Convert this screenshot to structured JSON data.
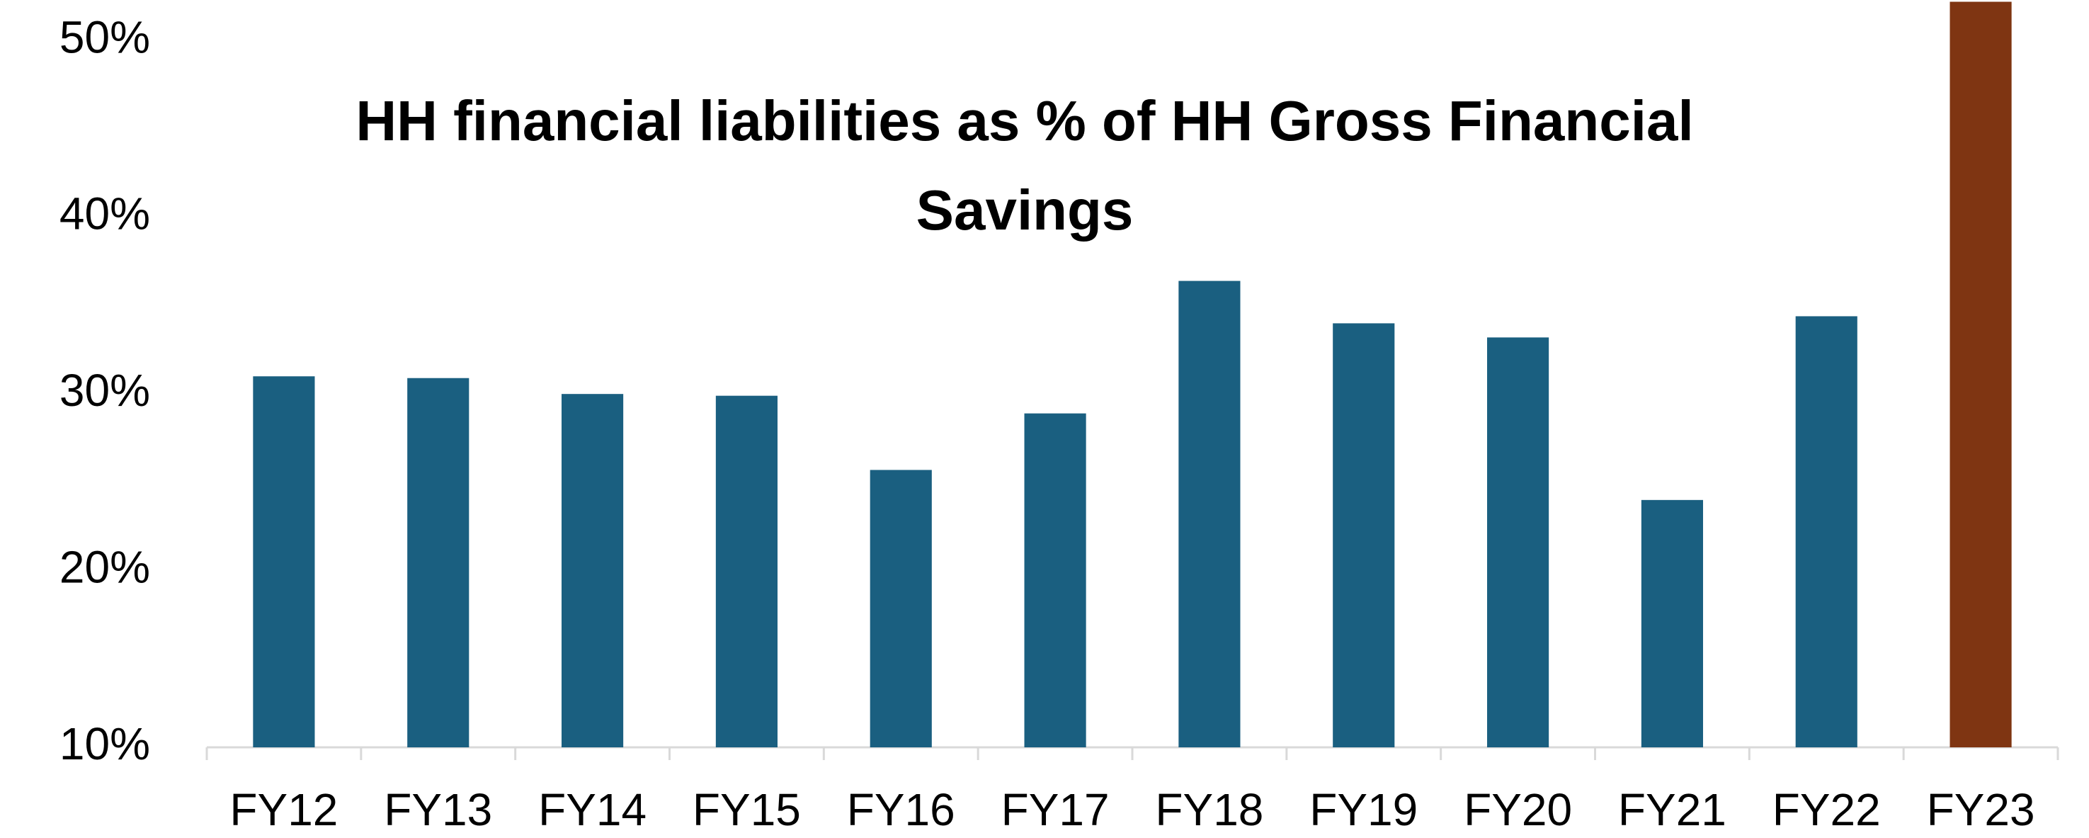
{
  "chart_data": {
    "type": "bar",
    "title": "HH financial liabilities as % of HH Gross Financial Savings",
    "categories": [
      "FY12",
      "FY13",
      "FY14",
      "FY15",
      "FY16",
      "FY17",
      "FY18",
      "FY19",
      "FY20",
      "FY21",
      "FY22",
      "FY23"
    ],
    "values": [
      31.0,
      30.9,
      30.0,
      29.9,
      25.7,
      28.9,
      36.4,
      34.0,
      33.2,
      24.0,
      34.4,
      52.2
    ],
    "colors": [
      "#1a5f80",
      "#1a5f80",
      "#1a5f80",
      "#1a5f80",
      "#1a5f80",
      "#1a5f80",
      "#1a5f80",
      "#1a5f80",
      "#1a5f80",
      "#1a5f80",
      "#1a5f80",
      "#7f3512"
    ],
    "ylim": [
      10,
      52.3
    ],
    "yticks": [
      {
        "value": 10,
        "label": "10%"
      },
      {
        "value": 20,
        "label": "20%"
      },
      {
        "value": 30,
        "label": "30%"
      },
      {
        "value": 40,
        "label": "40%"
      },
      {
        "value": 50,
        "label": "50%"
      }
    ],
    "grid": false
  }
}
